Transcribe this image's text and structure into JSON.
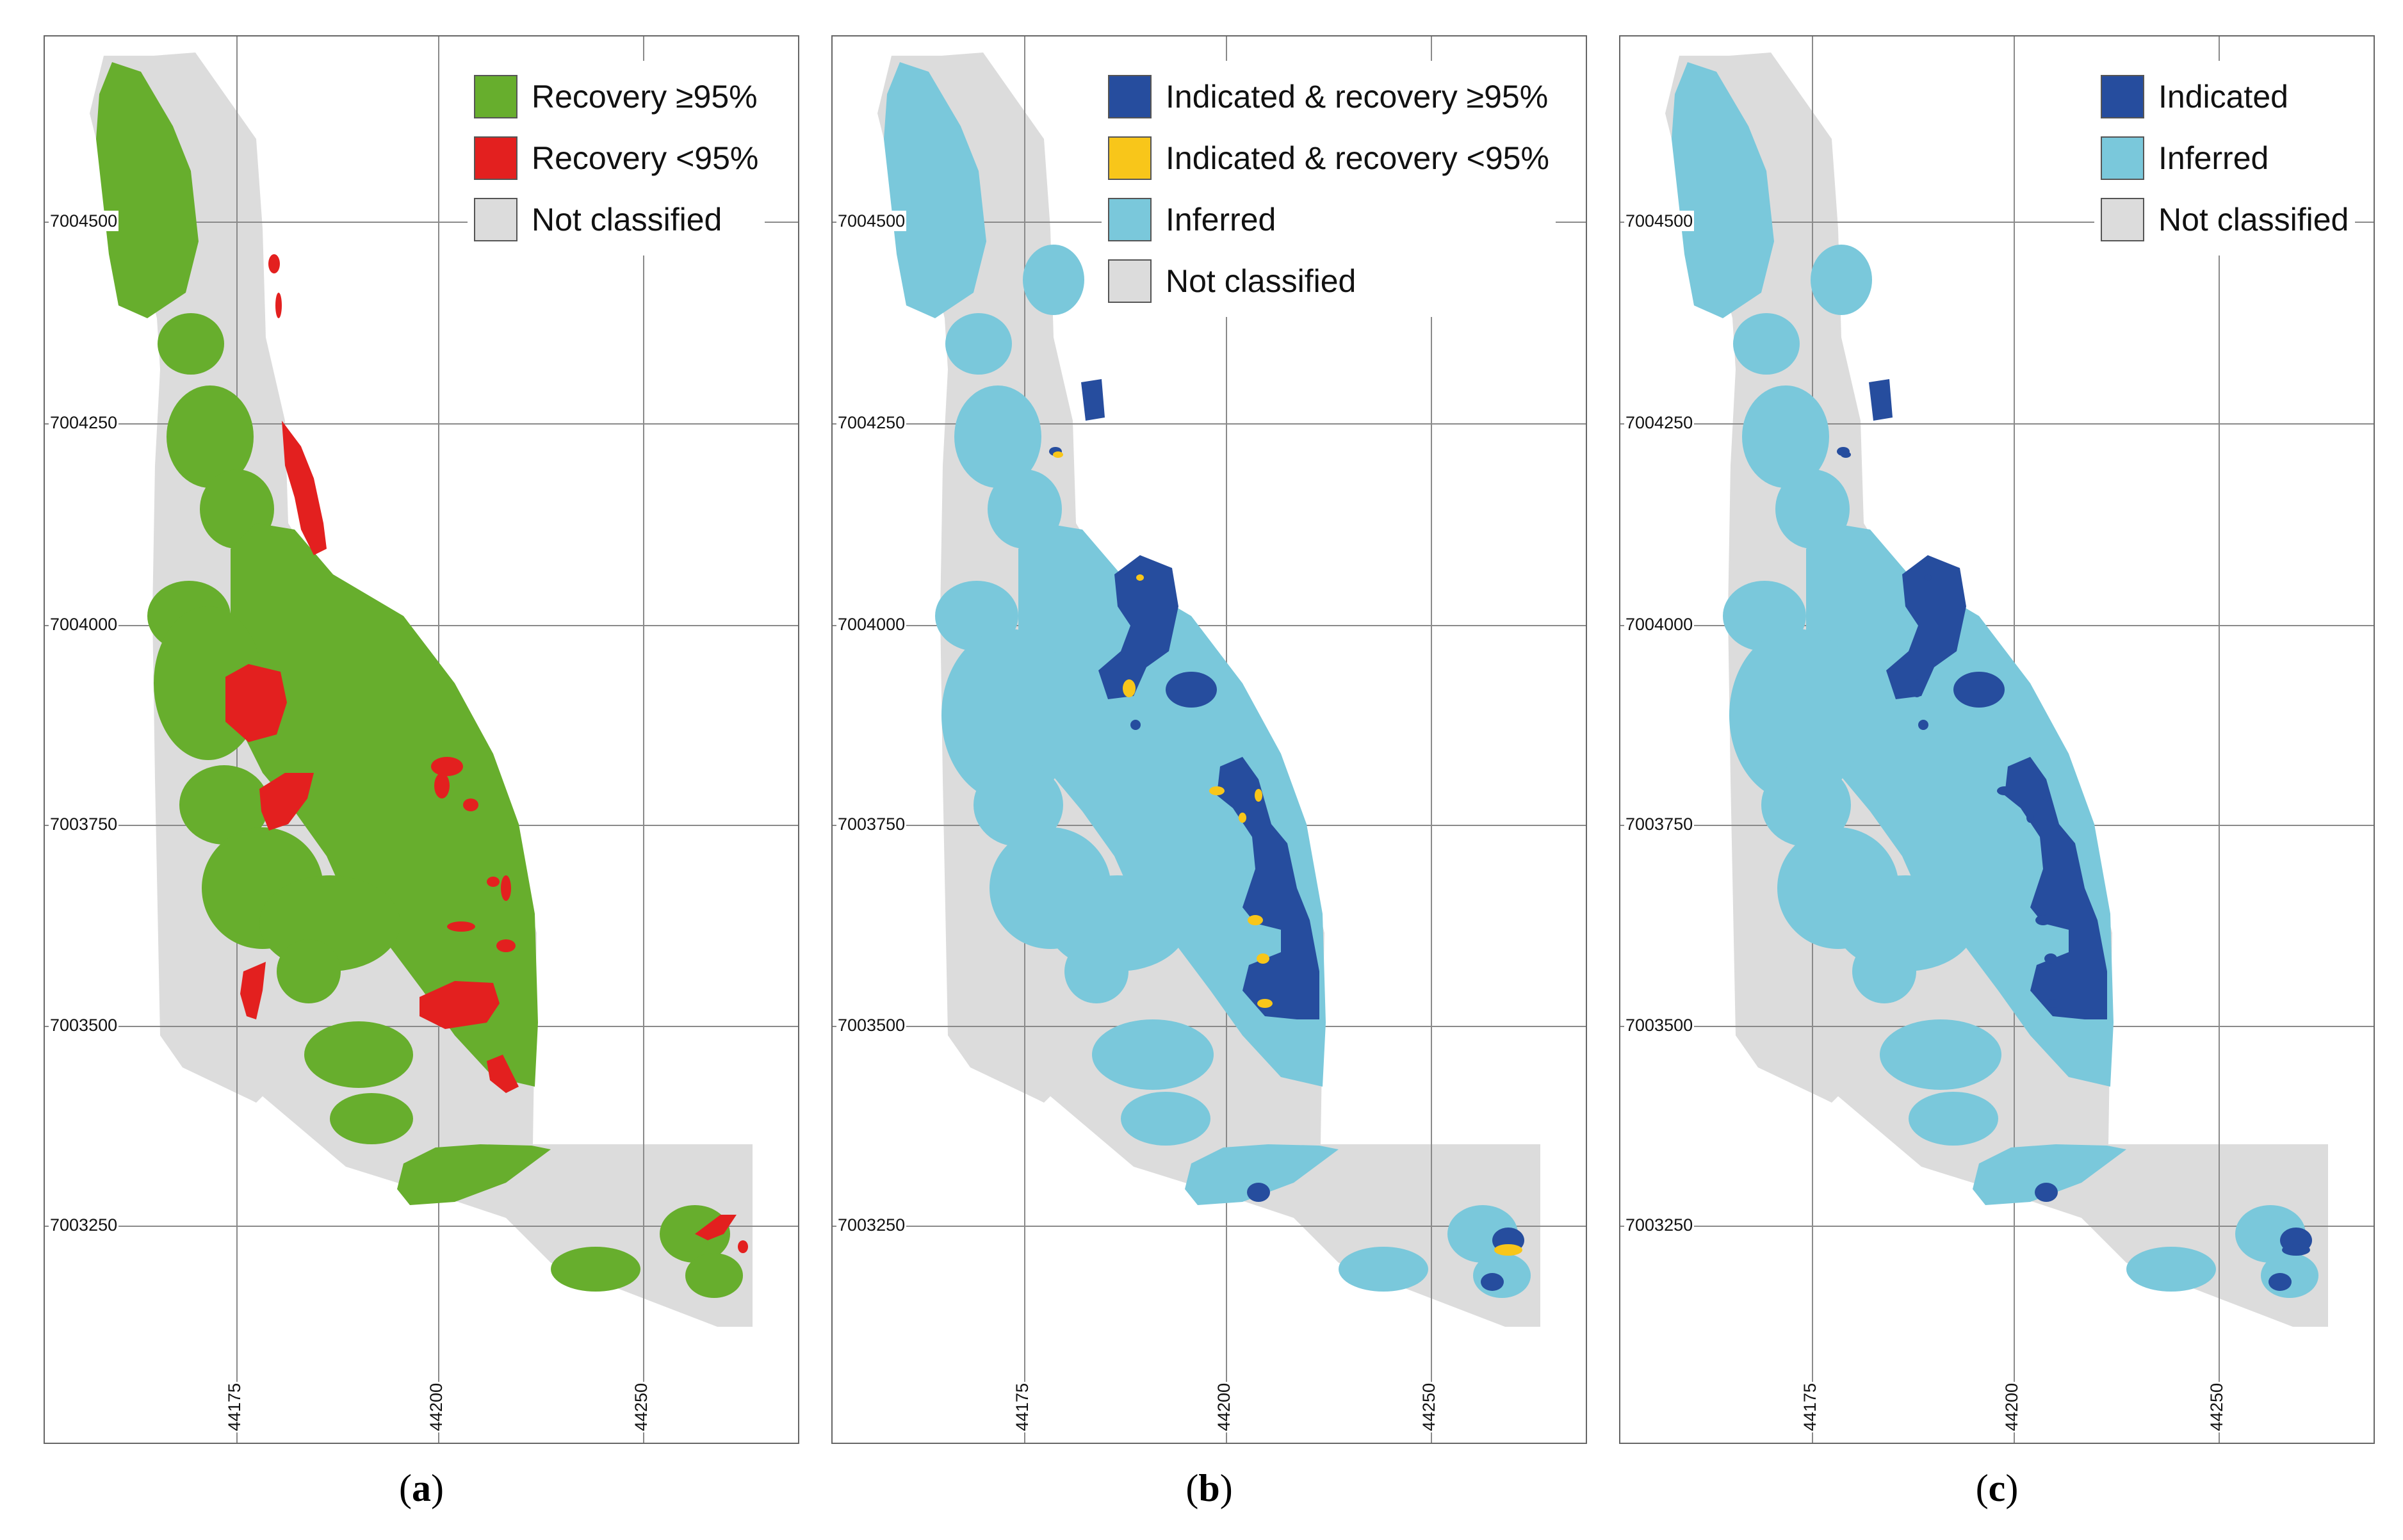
{
  "y_ticks": [
    "7004500",
    "7004250",
    "7004000",
    "7003750",
    "7003500",
    "7003250"
  ],
  "x_ticks": [
    "44175",
    "44200",
    "44250"
  ],
  "colors": {
    "not_classified": "#dcdcdc",
    "recovery_high": "#67ae2d",
    "recovery_low": "#e3201f",
    "indicated": "#264d9e",
    "indicated_low": "#f8c61a",
    "inferred": "#7ac8db",
    "grid": "#8a8a8a"
  },
  "panels": [
    {
      "id": "a",
      "caption_open": "(",
      "caption_letter": "a",
      "caption_close": ")",
      "legend": [
        {
          "label": "Recovery ≥95%",
          "color": "#67ae2d"
        },
        {
          "label": "Recovery <95%",
          "color": "#e3201f"
        },
        {
          "label": "Not classified",
          "color": "#dcdcdc"
        }
      ]
    },
    {
      "id": "b",
      "caption_open": "(",
      "caption_letter": "b",
      "caption_close": ")",
      "legend": [
        {
          "label": "Indicated & recovery ≥95%",
          "color": "#264d9e"
        },
        {
          "label": "Indicated & recovery <95%",
          "color": "#f8c61a"
        },
        {
          "label": "Inferred",
          "color": "#7ac8db"
        },
        {
          "label": "Not classified",
          "color": "#dcdcdc"
        }
      ]
    },
    {
      "id": "c",
      "caption_open": "(",
      "caption_letter": "c",
      "caption_close": ")",
      "legend": [
        {
          "label": "Indicated",
          "color": "#264d9e"
        },
        {
          "label": "Inferred",
          "color": "#7ac8db"
        },
        {
          "label": "Not classified",
          "color": "#dcdcdc"
        }
      ]
    }
  ]
}
